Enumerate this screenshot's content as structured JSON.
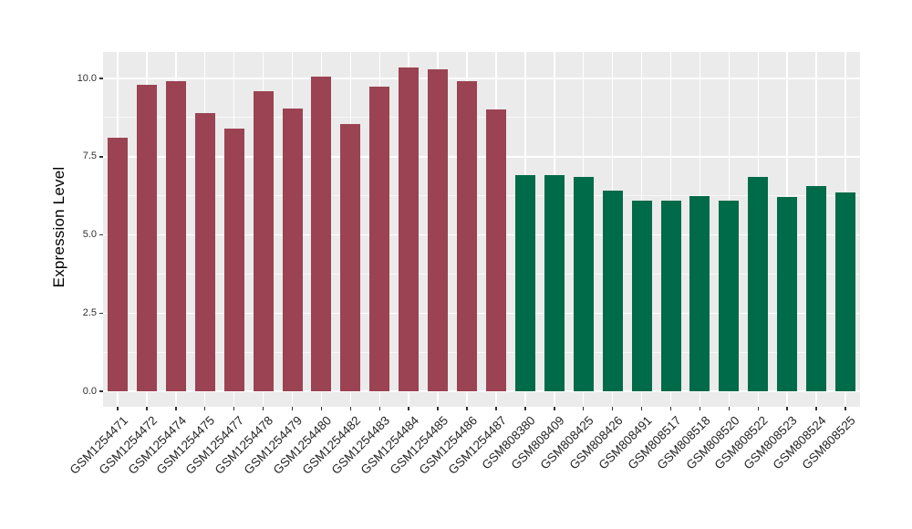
{
  "figure": {
    "background_color": "#FFFFFF",
    "panel_background_color": "#EBEBEB",
    "gridline_color": "#FFFFFF",
    "tick_mark_color": "#333333",
    "axis_text_color": "#303030",
    "axis_title_color": "#000000"
  },
  "chart_data": {
    "type": "bar",
    "title": "",
    "xlabel": "",
    "ylabel": "Expression Level",
    "ylim": [
      0,
      10.89
    ],
    "grid": true,
    "legend_position": "none",
    "yticks": [
      {
        "value": 0,
        "label": "0.0"
      },
      {
        "value": 2.5,
        "label": "2.5"
      },
      {
        "value": 5,
        "label": "5.0"
      },
      {
        "value": 7.5,
        "label": "7.5"
      },
      {
        "value": 10,
        "label": "10.0"
      }
    ],
    "bar_groups": [
      {
        "name": "group-1",
        "color": "#9B4352",
        "categories": [
          "GSM1254471",
          "GSM1254472",
          "GSM1254474",
          "GSM1254475",
          "GSM1254477",
          "GSM1254478",
          "GSM1254479",
          "GSM1254480",
          "GSM1254482",
          "GSM1254483",
          "GSM1254484",
          "GSM1254485",
          "GSM1254486",
          "GSM1254487"
        ],
        "values": [
          8.1,
          9.8,
          9.9,
          8.9,
          8.4,
          9.6,
          9.05,
          10.05,
          8.55,
          9.75,
          10.35,
          10.3,
          9.9,
          9.0
        ]
      },
      {
        "name": "group-2",
        "color": "#006B48",
        "categories": [
          "GSM808380",
          "GSM808409",
          "GSM808425",
          "GSM808426",
          "GSM808491",
          "GSM808517",
          "GSM808518",
          "GSM808520",
          "GSM808522",
          "GSM808523",
          "GSM808524",
          "GSM808525"
        ],
        "values": [
          6.9,
          6.9,
          6.85,
          6.4,
          6.1,
          6.1,
          6.25,
          6.1,
          6.85,
          6.2,
          6.55,
          6.35
        ]
      }
    ]
  }
}
